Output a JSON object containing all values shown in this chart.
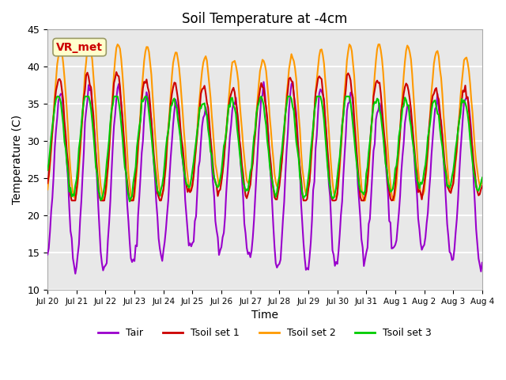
{
  "title": "Soil Temperature at -4cm",
  "xlabel": "Time",
  "ylabel": "Temperature (C)",
  "ylim": [
    10,
    45
  ],
  "plot_bg_color": "#e8e8e8",
  "grid_color": "white",
  "colors": {
    "Tair": "#9900cc",
    "Tsoil_set1": "#cc0000",
    "Tsoil_set2": "#ff9900",
    "Tsoil_set3": "#00cc00"
  },
  "legend_labels": [
    "Tair",
    "Tsoil set 1",
    "Tsoil set 2",
    "Tsoil set 3"
  ],
  "annotation_text": "VR_met",
  "annotation_color": "#cc0000",
  "annotation_bg": "#ffffcc",
  "tick_labels": [
    "Jul 20",
    "Jul 21",
    "Jul 22",
    "Jul 23",
    "Jul 24",
    "Jul 25",
    "Jul 26",
    "Jul 27",
    "Jul 28",
    "Jul 29",
    "Jul 30",
    "Jul 31",
    "Aug 1",
    "Aug 2",
    "Aug 3",
    "Aug 4"
  ],
  "n_days": 15,
  "n_hours": 361,
  "yticks": [
    10,
    15,
    20,
    25,
    30,
    35,
    40,
    45
  ]
}
